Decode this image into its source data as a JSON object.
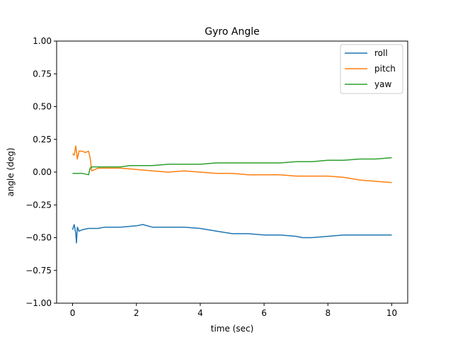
{
  "chart_data": {
    "type": "line",
    "title": "Gyro Angle",
    "xlabel": "time (sec)",
    "ylabel": "angle (deg)",
    "xlim": [
      -0.5,
      10.5
    ],
    "ylim": [
      -1.0,
      1.0
    ],
    "xticks": [
      0,
      2,
      4,
      6,
      8,
      10
    ],
    "xtick_labels": [
      "0",
      "2",
      "4",
      "6",
      "8",
      "10"
    ],
    "yticks": [
      -1.0,
      -0.75,
      -0.5,
      -0.25,
      0.0,
      0.25,
      0.5,
      0.75,
      1.0
    ],
    "ytick_labels": [
      "−1.00",
      "−0.75",
      "−0.50",
      "−0.25",
      "0.00",
      "0.25",
      "0.50",
      "0.75",
      "1.00"
    ],
    "grid": false,
    "legend_position": "top-right",
    "series": [
      {
        "name": "roll",
        "color": "#1f77b4",
        "x": [
          0,
          0.05,
          0.1,
          0.12,
          0.15,
          0.2,
          0.3,
          0.5,
          0.8,
          1.0,
          1.5,
          2.0,
          2.2,
          2.5,
          3.0,
          3.5,
          4.0,
          4.5,
          5.0,
          5.5,
          6.0,
          6.5,
          7.0,
          7.2,
          7.5,
          8.0,
          8.5,
          9.0,
          9.5,
          10.0
        ],
        "y": [
          -0.44,
          -0.4,
          -0.47,
          -0.54,
          -0.42,
          -0.45,
          -0.44,
          -0.43,
          -0.43,
          -0.42,
          -0.42,
          -0.41,
          -0.4,
          -0.42,
          -0.42,
          -0.42,
          -0.43,
          -0.45,
          -0.47,
          -0.47,
          -0.48,
          -0.48,
          -0.49,
          -0.5,
          -0.5,
          -0.49,
          -0.48,
          -0.48,
          -0.48,
          -0.48
        ]
      },
      {
        "name": "pitch",
        "color": "#ff7f0e",
        "x": [
          0,
          0.05,
          0.1,
          0.15,
          0.2,
          0.3,
          0.4,
          0.5,
          0.55,
          0.6,
          0.8,
          1.0,
          1.5,
          2.0,
          2.5,
          3.0,
          3.5,
          4.0,
          4.5,
          5.0,
          5.5,
          6.0,
          6.5,
          7.0,
          7.5,
          8.0,
          8.5,
          9.0,
          9.5,
          10.0
        ],
        "y": [
          0.14,
          0.13,
          0.2,
          0.1,
          0.16,
          0.16,
          0.15,
          0.16,
          0.11,
          0.01,
          0.03,
          0.03,
          0.03,
          0.02,
          0.01,
          0.0,
          0.01,
          0.0,
          -0.01,
          -0.01,
          -0.02,
          -0.02,
          -0.02,
          -0.03,
          -0.03,
          -0.03,
          -0.04,
          -0.06,
          -0.07,
          -0.08
        ]
      },
      {
        "name": "yaw",
        "color": "#2ca02c",
        "x": [
          0,
          0.3,
          0.5,
          0.55,
          0.6,
          1.0,
          1.5,
          1.8,
          2.0,
          2.5,
          3.0,
          3.5,
          4.0,
          4.5,
          5.0,
          5.5,
          6.0,
          6.5,
          7.0,
          7.5,
          8.0,
          8.5,
          9.0,
          9.5,
          10.0
        ],
        "y": [
          -0.01,
          -0.01,
          -0.02,
          0.03,
          0.04,
          0.04,
          0.04,
          0.05,
          0.05,
          0.05,
          0.06,
          0.06,
          0.06,
          0.07,
          0.07,
          0.07,
          0.07,
          0.07,
          0.08,
          0.08,
          0.09,
          0.09,
          0.1,
          0.1,
          0.11
        ]
      }
    ]
  }
}
